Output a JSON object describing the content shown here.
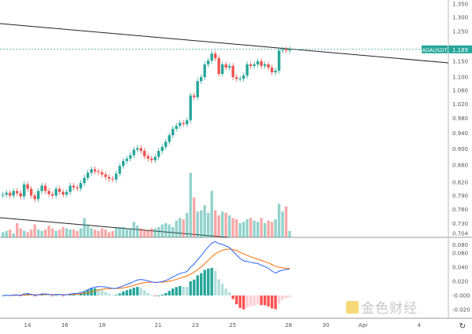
{
  "symbol": "ADAUSDT",
  "last_price": "1.189",
  "colors": {
    "up": "#26a69a",
    "down": "#ef5350",
    "macd": "#2962ff",
    "signal": "#ff6d00"
  },
  "price_ticks": [
    "1.350",
    "1.300",
    "1.250",
    "1.150",
    "1.100",
    "1.060",
    "1.020",
    "0.980",
    "0.940",
    "0.900",
    "0.860",
    "0.820",
    "0.790",
    "0.760",
    "0.730",
    "0.704"
  ],
  "macd_ticks": [
    "0.080",
    "0.060",
    "0.040",
    "0.020",
    "-0.000",
    "-0.020"
  ],
  "date_labels": [
    {
      "label": "14",
      "day": 14
    },
    {
      "label": "16",
      "day": 16
    },
    {
      "label": "18",
      "day": 18
    },
    {
      "label": "21",
      "day": 21
    },
    {
      "label": "23",
      "day": 23
    },
    {
      "label": "25",
      "day": 25
    },
    {
      "label": "28",
      "day": 28
    },
    {
      "label": "30",
      "day": 30
    },
    {
      "label": "Apr",
      "day": 32
    },
    {
      "label": "4",
      "day": 35
    }
  ],
  "reset_icon": "reset-icon",
  "logo_text": "金色财经",
  "chart_data": {
    "type": "candlestick",
    "scale": "log",
    "closes": [
      0.792,
      0.796,
      0.79,
      0.8,
      0.795,
      0.788,
      0.815,
      0.805,
      0.79,
      0.782,
      0.8,
      0.812,
      0.8,
      0.793,
      0.79,
      0.805,
      0.798,
      0.792,
      0.798,
      0.812,
      0.808,
      0.806,
      0.818,
      0.83,
      0.842,
      0.85,
      0.845,
      0.843,
      0.838,
      0.832,
      0.828,
      0.826,
      0.84,
      0.858,
      0.87,
      0.876,
      0.884,
      0.898,
      0.902,
      0.895,
      0.882,
      0.876,
      0.872,
      0.88,
      0.895,
      0.905,
      0.918,
      0.935,
      0.952,
      0.96,
      0.968,
      0.965,
      0.975,
      1.045,
      1.04,
      1.088,
      1.1,
      1.14,
      1.152,
      1.175,
      1.16,
      1.11,
      1.14,
      1.13,
      1.135,
      1.1,
      1.095,
      1.095,
      1.105,
      1.14,
      1.135,
      1.14,
      1.15,
      1.135,
      1.14,
      1.13,
      1.115,
      1.12,
      1.185,
      1.188,
      1.185,
      1.189
    ],
    "volumes": [
      8,
      10,
      12,
      6,
      22,
      14,
      10,
      8,
      12,
      20,
      12,
      10,
      12,
      18,
      14,
      10,
      12,
      16,
      14,
      12,
      12,
      10,
      14,
      30,
      20,
      14,
      12,
      10,
      14,
      12,
      8,
      10,
      14,
      16,
      16,
      12,
      14,
      24,
      18,
      14,
      12,
      10,
      14,
      14,
      16,
      20,
      22,
      20,
      16,
      26,
      30,
      28,
      38,
      100,
      62,
      40,
      42,
      50,
      38,
      72,
      42,
      34,
      40,
      38,
      34,
      30,
      28,
      22,
      24,
      28,
      30,
      26,
      24,
      30,
      22,
      26,
      24,
      28,
      52,
      40,
      48,
      10
    ],
    "indicator": "MACD"
  }
}
